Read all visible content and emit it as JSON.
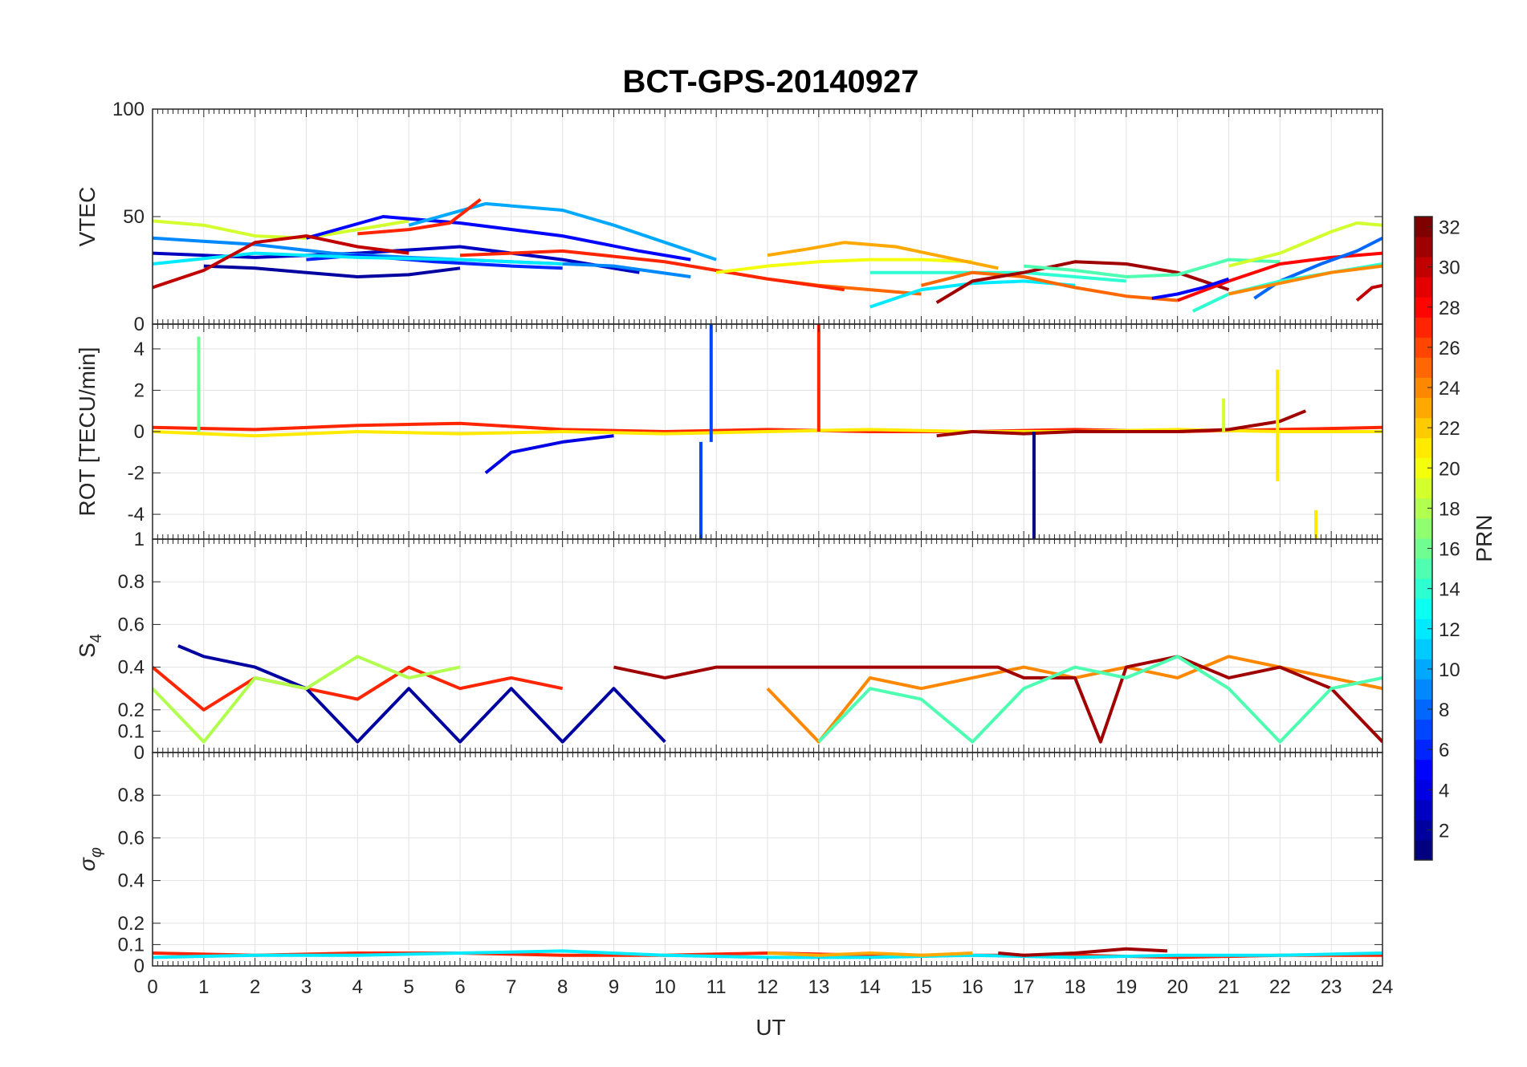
{
  "chart_data": {
    "type": "line",
    "title": "BCT-GPS-20140927",
    "xlabel": "UT",
    "xlim": [
      0,
      24
    ],
    "xticks": [
      "0",
      "1",
      "2",
      "3",
      "4",
      "5",
      "6",
      "7",
      "8",
      "9",
      "10",
      "11",
      "12",
      "13",
      "14",
      "15",
      "16",
      "17",
      "18",
      "19",
      "20",
      "21",
      "22",
      "23",
      "24"
    ],
    "grid": true,
    "colormap": "jet",
    "colorbar": {
      "label": "PRN",
      "range": [
        1,
        32
      ],
      "ticks": [
        "2",
        "4",
        "6",
        "8",
        "10",
        "12",
        "14",
        "16",
        "18",
        "20",
        "22",
        "24",
        "26",
        "28",
        "30",
        "32"
      ]
    },
    "panels": [
      {
        "ylabel": "VTEC",
        "ylim": [
          0,
          100
        ],
        "yticks": [
          "0",
          "50",
          "100"
        ],
        "series": [
          {
            "prn": 3,
            "x": [
              0,
              2,
              4,
              6,
              8,
              9.5
            ],
            "y": [
              33,
              31,
              33,
              36,
              30,
              24
            ]
          },
          {
            "prn": 9,
            "x": [
              0,
              2,
              3.5,
              5,
              7,
              9,
              10.5
            ],
            "y": [
              40,
              37,
              33,
              31,
              29,
              27,
              22
            ]
          },
          {
            "prn": 19,
            "x": [
              0,
              1,
              2,
              3,
              4,
              5
            ],
            "y": [
              48,
              46,
              41,
              40,
              44,
              48
            ]
          },
          {
            "prn": 5,
            "x": [
              3,
              4.5,
              6,
              8,
              9.5,
              10.5
            ],
            "y": [
              40,
              50,
              47,
              41,
              34,
              30
            ]
          },
          {
            "prn": 10,
            "x": [
              5,
              6.5,
              8,
              9,
              10,
              11
            ],
            "y": [
              46,
              56,
              53,
              46,
              38,
              30
            ]
          },
          {
            "prn": 2,
            "x": [
              1,
              2,
              3,
              4,
              5,
              6
            ],
            "y": [
              27,
              26,
              24,
              22,
              23,
              26
            ]
          },
          {
            "prn": 6,
            "x": [
              3,
              4,
              5.5,
              7,
              8
            ],
            "y": [
              30,
              32,
              29,
              27,
              26
            ]
          },
          {
            "prn": 27,
            "x": [
              4,
              5,
              5.8,
              6.4
            ],
            "y": [
              42,
              44,
              47,
              58
            ]
          },
          {
            "prn": 25,
            "x": [
              10,
              11,
              12,
              13,
              14,
              15
            ],
            "y": [
              29,
              25,
              21,
              18,
              16,
              14
            ]
          },
          {
            "prn": 12,
            "x": [
              0,
              2,
              4,
              6,
              8
            ],
            "y": [
              28,
              33,
              31,
              30,
              28
            ]
          },
          {
            "prn": 30,
            "x": [
              0,
              1,
              2,
              3,
              4,
              5
            ],
            "y": [
              17,
              25,
              38,
              41,
              36,
              33
            ]
          },
          {
            "prn": 27,
            "x": [
              6,
              8,
              10,
              12,
              13.5
            ],
            "y": [
              32,
              34,
              29,
              21,
              16
            ]
          },
          {
            "prn": 20,
            "x": [
              11,
              12,
              13,
              14,
              15,
              16
            ],
            "y": [
              24,
              27,
              29,
              30,
              30,
              29
            ]
          },
          {
            "prn": 23,
            "x": [
              12,
              12.8,
              13.5,
              14.5,
              15.5,
              16.5
            ],
            "y": [
              32,
              35,
              38,
              36,
              31,
              26
            ]
          },
          {
            "prn": 14,
            "x": [
              14,
              15,
              16,
              17,
              18,
              19
            ],
            "y": [
              24,
              24,
              24,
              24,
              22,
              20
            ]
          },
          {
            "prn": 12,
            "x": [
              14,
              15,
              16,
              17,
              18
            ],
            "y": [
              8,
              16,
              19,
              20,
              18
            ]
          },
          {
            "prn": 25,
            "x": [
              15,
              16,
              17,
              18,
              19,
              20
            ],
            "y": [
              18,
              24,
              22,
              17,
              13,
              11
            ]
          },
          {
            "prn": 31,
            "x": [
              15.3,
              16,
              17,
              18,
              19,
              20,
              21
            ],
            "y": [
              10,
              20,
              24,
              29,
              28,
              24,
              16
            ]
          },
          {
            "prn": 15,
            "x": [
              17,
              18,
              19,
              20,
              21,
              22
            ],
            "y": [
              27,
              25,
              22,
              23,
              30,
              29
            ]
          },
          {
            "prn": 19,
            "x": [
              21,
              22,
              23,
              23.5,
              24
            ],
            "y": [
              27,
              33,
              43,
              47,
              46
            ]
          },
          {
            "prn": 28,
            "x": [
              20,
              21,
              22,
              23,
              24
            ],
            "y": [
              11,
              20,
              28,
              31,
              33
            ]
          },
          {
            "prn": 8,
            "x": [
              21.5,
              22,
              22.8,
              23.5,
              24
            ],
            "y": [
              12,
              20,
              28,
              34,
              40
            ]
          },
          {
            "prn": 14,
            "x": [
              20.3,
              21,
              22,
              23,
              24
            ],
            "y": [
              6,
              14,
              20,
              24,
              28
            ]
          },
          {
            "prn": 24,
            "x": [
              21,
              22,
              23,
              24
            ],
            "y": [
              14,
              19,
              24,
              27
            ]
          },
          {
            "prn": 30,
            "x": [
              23.5,
              23.8,
              24
            ],
            "y": [
              11,
              17,
              18
            ]
          },
          {
            "prn": 5,
            "x": [
              19.5,
              20,
              20.5,
              21
            ],
            "y": [
              12,
              14,
              17,
              21
            ]
          }
        ]
      },
      {
        "ylabel": "ROT [TECU/min]",
        "ylim": [
          -5.2,
          5.2
        ],
        "yticks": [
          "-4",
          "-2",
          "0",
          "2",
          "4"
        ],
        "series": [
          {
            "prn": 27,
            "x": [
              0,
              2,
              4,
              6,
              8,
              10,
              12,
              14,
              16,
              18,
              20,
              22,
              24
            ],
            "y": [
              0.2,
              0.1,
              0.3,
              0.4,
              0.1,
              0,
              0.1,
              0,
              0,
              0.1,
              0,
              0.1,
              0.2
            ]
          },
          {
            "prn": 21,
            "x": [
              0,
              2,
              4,
              6,
              8,
              10,
              12,
              14,
              16,
              18,
              20,
              22,
              24
            ],
            "y": [
              0,
              -0.2,
              0,
              -0.1,
              0,
              -0.1,
              0,
              0.1,
              0,
              0,
              0.1,
              0,
              0
            ]
          },
          {
            "prn": 31,
            "x": [
              15.3,
              16,
              17,
              18,
              19,
              20,
              21,
              22,
              22.5
            ],
            "y": [
              -0.2,
              0,
              -0.1,
              0,
              0,
              0,
              0.1,
              0.5,
              1
            ]
          },
          {
            "prn": 4,
            "x": [
              6.5,
              7,
              8,
              9
            ],
            "y": [
              -2,
              -1,
              -0.5,
              -0.2
            ]
          }
        ],
        "spikes": [
          {
            "prn": 16,
            "x": 0.9,
            "ymin": 0,
            "ymax": 4.6
          },
          {
            "prn": 7,
            "x": 10.9,
            "ymin": -0.5,
            "ymax": 5.2
          },
          {
            "prn": 7,
            "x": 10.7,
            "ymin": -5.2,
            "ymax": -0.5
          },
          {
            "prn": 27,
            "x": 13.0,
            "ymin": 0,
            "ymax": 5.2
          },
          {
            "prn": 1,
            "x": 17.2,
            "ymin": -5.2,
            "ymax": 0
          },
          {
            "prn": 21,
            "x": 21.95,
            "ymin": -2.4,
            "ymax": 3.0
          },
          {
            "prn": 21,
            "x": 22.7,
            "ymin": -5.2,
            "ymax": -3.8
          },
          {
            "prn": 19,
            "x": 20.9,
            "ymin": 0,
            "ymax": 1.6
          }
        ]
      },
      {
        "ylabel": "S4",
        "ylim": [
          0,
          1
        ],
        "yticks": [
          "0",
          "0.1",
          "0.2",
          "0.4",
          "0.6",
          "0.8",
          "1"
        ],
        "series": [
          {
            "prn": 27,
            "x": [
              0,
              1,
              2,
              3,
              4,
              5,
              6,
              7,
              8
            ],
            "y": [
              0.4,
              0.2,
              0.35,
              0.3,
              0.25,
              0.4,
              0.3,
              0.35,
              0.3
            ]
          },
          {
            "prn": 2,
            "x": [
              0.5,
              1,
              2,
              3,
              4,
              5,
              6,
              7,
              8,
              9,
              10
            ],
            "y": [
              0.5,
              0.45,
              0.4,
              0.3,
              0.05,
              0.3,
              0.05,
              0.3,
              0.05,
              0.3,
              0.05
            ]
          },
          {
            "prn": 18,
            "x": [
              0,
              1,
              2,
              3,
              4,
              5,
              6
            ],
            "y": [
              0.3,
              0.05,
              0.35,
              0.3,
              0.45,
              0.35,
              0.4
            ]
          },
          {
            "prn": 24,
            "x": [
              12,
              13,
              14,
              15,
              16,
              17,
              18,
              19,
              20,
              21,
              22,
              23,
              24
            ],
            "y": [
              0.3,
              0.05,
              0.35,
              0.3,
              0.35,
              0.4,
              0.35,
              0.4,
              0.35,
              0.45,
              0.4,
              0.35,
              0.3
            ]
          },
          {
            "prn": 31,
            "x": [
              9,
              10,
              11,
              16.5,
              17,
              18,
              18.5,
              19,
              20,
              21,
              22,
              23,
              24
            ],
            "y": [
              0.4,
              0.35,
              0.4,
              0.4,
              0.35,
              0.35,
              0.05,
              0.4,
              0.45,
              0.35,
              0.4,
              0.3,
              0.05
            ]
          },
          {
            "prn": 15,
            "x": [
              13,
              14,
              15,
              16,
              17,
              18,
              19,
              20,
              21,
              22,
              23,
              24
            ],
            "y": [
              0.05,
              0.3,
              0.25,
              0.05,
              0.3,
              0.4,
              0.35,
              0.45,
              0.3,
              0.05,
              0.3,
              0.35
            ]
          }
        ]
      },
      {
        "ylabel": "σφ",
        "ylim": [
          0,
          1
        ],
        "yticks": [
          "0",
          "0.1",
          "0.2",
          "0.4",
          "0.6",
          "0.8"
        ],
        "series": [
          {
            "prn": 27,
            "x": [
              0,
              2,
              4,
              6,
              8,
              10,
              12,
              14,
              16,
              18,
              20,
              22,
              24
            ],
            "y": [
              0.06,
              0.05,
              0.06,
              0.06,
              0.05,
              0.05,
              0.06,
              0.05,
              0.05,
              0.05,
              0.04,
              0.05,
              0.05
            ]
          },
          {
            "prn": 12,
            "x": [
              0,
              2,
              4,
              6,
              8,
              10,
              12,
              14,
              16,
              18,
              20,
              22,
              24
            ],
            "y": [
              0.04,
              0.05,
              0.05,
              0.06,
              0.07,
              0.05,
              0.04,
              0.04,
              0.05,
              0.04,
              0.05,
              0.05,
              0.06
            ]
          },
          {
            "prn": 31,
            "x": [
              16.5,
              17,
              18,
              19,
              19.8
            ],
            "y": [
              0.06,
              0.05,
              0.06,
              0.08,
              0.07
            ]
          },
          {
            "prn": 23,
            "x": [
              12,
              13,
              14,
              15,
              16
            ],
            "y": [
              0.06,
              0.05,
              0.06,
              0.05,
              0.06
            ]
          }
        ]
      }
    ]
  }
}
